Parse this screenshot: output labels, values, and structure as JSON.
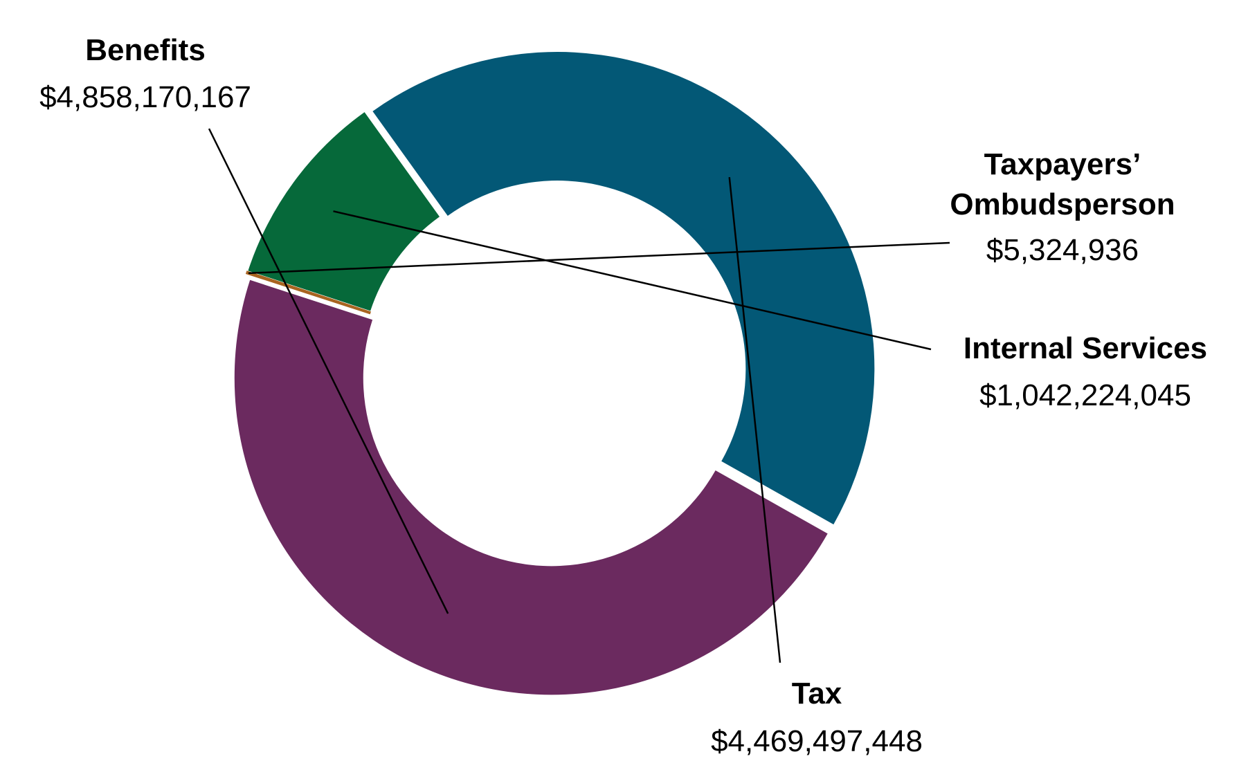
{
  "chart_data": {
    "type": "pie",
    "title": "",
    "donut": true,
    "legend": "none",
    "start_angle_deg": 162,
    "direction": "clockwise",
    "slices": [
      {
        "name": "Taxpayers’ Ombudsperson",
        "name_lines": [
          "Taxpayers’",
          "Ombudsperson"
        ],
        "value": 5324936,
        "label": "$5,324,936",
        "color": "#a86420"
      },
      {
        "name": "Internal Services",
        "name_lines": [
          "Internal Services"
        ],
        "value": 1042224045,
        "label": "$1,042,224,045",
        "color": "#06693a"
      },
      {
        "name": "Tax",
        "name_lines": [
          "Tax"
        ],
        "value": 4469497448,
        "label": "$4,469,497,448",
        "color": "#035876"
      },
      {
        "name": "Benefits",
        "name_lines": [
          "Benefits"
        ],
        "value": 4858170167,
        "label": "$4,858,170,167",
        "color": "#6b2a5f"
      }
    ]
  }
}
